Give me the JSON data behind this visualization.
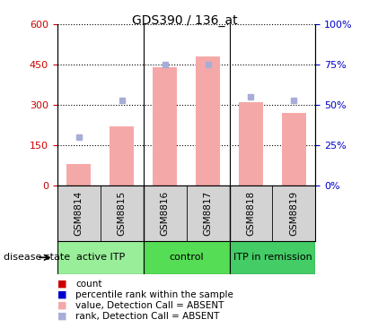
{
  "title": "GDS390 / 136_at",
  "samples": [
    "GSM8814",
    "GSM8815",
    "GSM8816",
    "GSM8817",
    "GSM8818",
    "GSM8819"
  ],
  "bar_values": [
    80,
    220,
    440,
    480,
    310,
    270
  ],
  "rank_values": [
    30,
    53,
    75,
    75,
    55,
    53
  ],
  "bar_color": "#f4a9a8",
  "rank_color": "#a8acd8",
  "ylim_left": [
    0,
    600
  ],
  "ylim_right": [
    0,
    100
  ],
  "yticks_left": [
    0,
    150,
    300,
    450,
    600
  ],
  "yticks_right": [
    0,
    25,
    50,
    75,
    100
  ],
  "ytick_labels_left": [
    "0",
    "150",
    "300",
    "450",
    "600"
  ],
  "ytick_labels_right": [
    "0%",
    "25%",
    "50%",
    "75%",
    "100%"
  ],
  "left_tick_color": "#cc0000",
  "right_tick_color": "#0000cc",
  "group_labels": [
    "active ITP",
    "control",
    "ITP in remission"
  ],
  "group_ranges": [
    [
      0,
      2
    ],
    [
      2,
      4
    ],
    [
      4,
      6
    ]
  ],
  "group_colors": [
    "#99ee99",
    "#55dd55",
    "#44cc66"
  ],
  "sample_bg_color": "#d3d3d3",
  "disease_state_label": "disease state",
  "legend_colors": [
    "#cc0000",
    "#0000cc",
    "#f4a9a8",
    "#a8acd8"
  ],
  "legend_labels": [
    "count",
    "percentile rank within the sample",
    "value, Detection Call = ABSENT",
    "rank, Detection Call = ABSENT"
  ]
}
